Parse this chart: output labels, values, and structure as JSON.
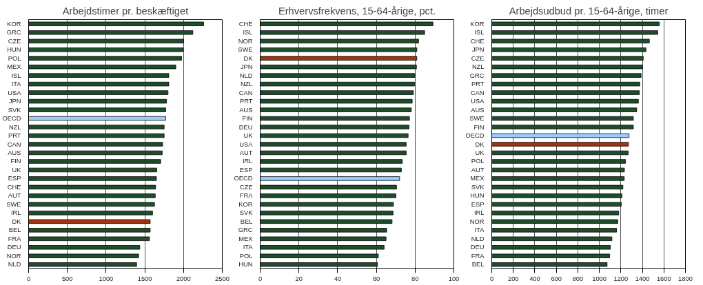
{
  "chart_data": [
    {
      "type": "bar",
      "orientation": "horizontal",
      "title": "Arbejdstimer pr. beskæftiget",
      "categories": [
        "KOR",
        "GRC",
        "CZE",
        "HUN",
        "POL",
        "MEX",
        "ISL",
        "ITA",
        "USA",
        "JPN",
        "SVK",
        "OECD",
        "NZL",
        "PRT",
        "CAN",
        "AUS",
        "FIN",
        "UK",
        "ESP",
        "CHE",
        "AUT",
        "SWE",
        "IRL",
        "DK",
        "BEL",
        "FRA",
        "DEU",
        "NOR",
        "NLD"
      ],
      "values": [
        2260,
        2120,
        2000,
        1995,
        1975,
        1900,
        1810,
        1810,
        1800,
        1780,
        1770,
        1770,
        1750,
        1750,
        1730,
        1725,
        1705,
        1655,
        1650,
        1640,
        1635,
        1625,
        1600,
        1570,
        1570,
        1560,
        1435,
        1420,
        1395
      ],
      "colors": [
        "#1e4d2b",
        "#1e4d2b",
        "#1e4d2b",
        "#1e4d2b",
        "#1e4d2b",
        "#1e4d2b",
        "#1e4d2b",
        "#1e4d2b",
        "#1e4d2b",
        "#1e4d2b",
        "#1e4d2b",
        "#99ccff",
        "#1e4d2b",
        "#1e4d2b",
        "#1e4d2b",
        "#1e4d2b",
        "#1e4d2b",
        "#1e4d2b",
        "#1e4d2b",
        "#1e4d2b",
        "#1e4d2b",
        "#1e4d2b",
        "#1e4d2b",
        "#a0340f",
        "#1e4d2b",
        "#1e4d2b",
        "#1e4d2b",
        "#1e4d2b",
        "#1e4d2b"
      ],
      "xlim": [
        0,
        2500
      ],
      "xticks": [
        0,
        500,
        1000,
        1500,
        2000,
        2500
      ],
      "grid": "x",
      "legend": false
    },
    {
      "type": "bar",
      "orientation": "horizontal",
      "title": "Erhvervsfrekvens, 15-64-årige, pct.",
      "categories": [
        "CHE",
        "ISL",
        "NOR",
        "SWE",
        "DK",
        "JPN",
        "NLD",
        "NZL",
        "CAN",
        "PRT",
        "AUS",
        "FIN",
        "DEU",
        "UK",
        "USA",
        "AUT",
        "IRL",
        "ESP",
        "OECD",
        "CZE",
        "FRA",
        "KOR",
        "SVK",
        "BEL",
        "GRC",
        "MEX",
        "ITA",
        "POL",
        "HUN"
      ],
      "values": [
        89.2,
        84.9,
        81.8,
        80.9,
        80.9,
        80.7,
        79.9,
        79.8,
        79.1,
        78.5,
        78.0,
        77.1,
        76.8,
        76.4,
        75.4,
        75.4,
        73.4,
        72.9,
        72.0,
        70.4,
        70.1,
        68.8,
        68.6,
        68.1,
        65.3,
        65.0,
        64.0,
        61.0,
        60.6
      ],
      "colors": [
        "#1e4d2b",
        "#1e4d2b",
        "#1e4d2b",
        "#1e4d2b",
        "#a0340f",
        "#1e4d2b",
        "#1e4d2b",
        "#1e4d2b",
        "#1e4d2b",
        "#1e4d2b",
        "#1e4d2b",
        "#1e4d2b",
        "#1e4d2b",
        "#1e4d2b",
        "#1e4d2b",
        "#1e4d2b",
        "#1e4d2b",
        "#1e4d2b",
        "#99ccff",
        "#1e4d2b",
        "#1e4d2b",
        "#1e4d2b",
        "#1e4d2b",
        "#1e4d2b",
        "#1e4d2b",
        "#1e4d2b",
        "#1e4d2b",
        "#1e4d2b",
        "#1e4d2b"
      ],
      "xlim": [
        0,
        100
      ],
      "xticks": [
        0,
        20,
        40,
        60,
        80,
        100
      ],
      "grid": "x",
      "legend": false
    },
    {
      "type": "bar",
      "orientation": "horizontal",
      "title": "Arbejdsudbud pr. 15-64-årige, timer",
      "categories": [
        "KOR",
        "ISL",
        "CHE",
        "JPN",
        "CZE",
        "NZL",
        "GRC",
        "PRT",
        "CAN",
        "USA",
        "AUS",
        "SWE",
        "FIN",
        "OECD",
        "DK",
        "UK",
        "POL",
        "AUT",
        "MEX",
        "SVK",
        "HUN",
        "ESP",
        "IRL",
        "NOR",
        "ITA",
        "NLD",
        "DEU",
        "FRA",
        "BEL"
      ],
      "values": [
        1557,
        1543,
        1465,
        1433,
        1408,
        1400,
        1388,
        1376,
        1372,
        1363,
        1347,
        1316,
        1316,
        1276,
        1270,
        1268,
        1243,
        1233,
        1231,
        1219,
        1210,
        1204,
        1180,
        1172,
        1160,
        1117,
        1103,
        1096,
        1072
      ],
      "colors": [
        "#1e4d2b",
        "#1e4d2b",
        "#1e4d2b",
        "#1e4d2b",
        "#1e4d2b",
        "#1e4d2b",
        "#1e4d2b",
        "#1e4d2b",
        "#1e4d2b",
        "#1e4d2b",
        "#1e4d2b",
        "#1e4d2b",
        "#1e4d2b",
        "#99ccff",
        "#a0340f",
        "#1e4d2b",
        "#1e4d2b",
        "#1e4d2b",
        "#1e4d2b",
        "#1e4d2b",
        "#1e4d2b",
        "#1e4d2b",
        "#1e4d2b",
        "#1e4d2b",
        "#1e4d2b",
        "#1e4d2b",
        "#1e4d2b",
        "#1e4d2b",
        "#1e4d2b"
      ],
      "xlim": [
        0,
        1800
      ],
      "xticks": [
        0,
        200,
        400,
        600,
        800,
        1000,
        1200,
        1400,
        1600,
        1800
      ],
      "grid": "x",
      "legend": false
    }
  ]
}
